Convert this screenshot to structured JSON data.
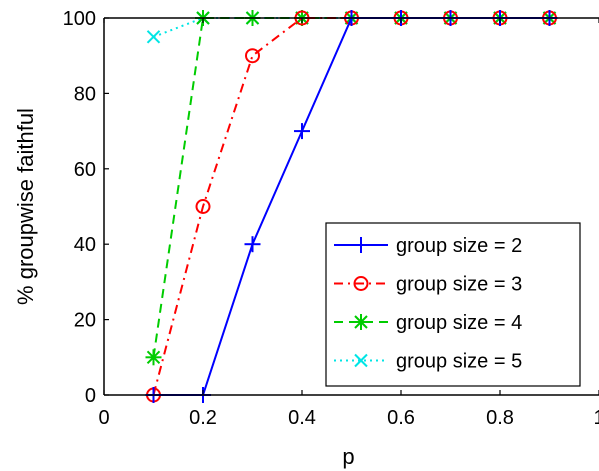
{
  "chart_data": {
    "type": "line",
    "title": "",
    "xlabel": "p",
    "ylabel": "% groupwise faithful",
    "xlim": [
      0,
      1
    ],
    "ylim": [
      0,
      100
    ],
    "x_ticks": [
      "0",
      "0.2",
      "0.4",
      "0.6",
      "0.8",
      "1"
    ],
    "y_ticks": [
      "0",
      "20",
      "40",
      "60",
      "80",
      "100"
    ],
    "grid": false,
    "legend_position": "bottom-right",
    "series": [
      {
        "name": "group size = 2",
        "color": "#0000ff",
        "line_style": "solid",
        "marker": "plus",
        "x": [
          0.1,
          0.2,
          0.3,
          0.4,
          0.5,
          0.6,
          0.7,
          0.8,
          0.9
        ],
        "y": [
          0,
          0,
          40,
          70,
          100,
          100,
          100,
          100,
          100
        ]
      },
      {
        "name": "group size = 3",
        "color": "#ff0000",
        "line_style": "dashdot",
        "marker": "circle",
        "x": [
          0.1,
          0.2,
          0.3,
          0.4,
          0.5,
          0.6,
          0.7,
          0.8,
          0.9
        ],
        "y": [
          0,
          50,
          90,
          100,
          100,
          100,
          100,
          100,
          100
        ]
      },
      {
        "name": "group size = 4",
        "color": "#00cc00",
        "line_style": "dashed",
        "marker": "asterisk",
        "x": [
          0.1,
          0.2,
          0.3,
          0.4,
          0.5,
          0.6,
          0.7,
          0.8,
          0.9
        ],
        "y": [
          10,
          100,
          100,
          100,
          100,
          100,
          100,
          100,
          100
        ]
      },
      {
        "name": "group size = 5",
        "color": "#00e5e5",
        "line_style": "dotted",
        "marker": "x",
        "x": [
          0.1,
          0.2,
          0.3,
          0.4,
          0.5,
          0.6,
          0.7,
          0.8,
          0.9
        ],
        "y": [
          95,
          100,
          100,
          100,
          100,
          100,
          100,
          100,
          100
        ]
      }
    ]
  }
}
